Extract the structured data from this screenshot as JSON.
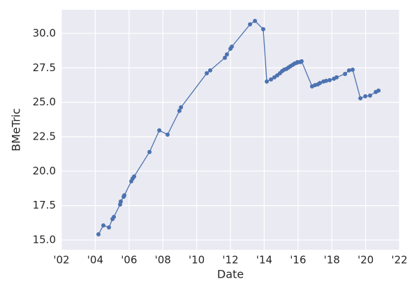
{
  "chart_data": {
    "type": "line",
    "xlabel": "Date",
    "ylabel": "BMeTric",
    "color": "#4c72b0",
    "grid": true,
    "x": [
      2004.19,
      2004.48,
      2004.81,
      2005.02,
      2005.1,
      2005.47,
      2005.51,
      2005.68,
      2005.72,
      2006.13,
      2006.21,
      2006.3,
      2007.21,
      2007.79,
      2008.28,
      2008.98,
      2009.07,
      2010.6,
      2010.8,
      2011.67,
      2011.79,
      2012.0,
      2012.08,
      2013.16,
      2013.45,
      2013.94,
      2014.15,
      2014.4,
      2014.6,
      2014.77,
      2014.93,
      2015.06,
      2015.18,
      2015.31,
      2015.43,
      2015.55,
      2015.68,
      2015.8,
      2015.93,
      2015.97,
      2016.13,
      2016.21,
      2016.83,
      2017.0,
      2017.17,
      2017.29,
      2017.5,
      2017.66,
      2017.87,
      2018.12,
      2018.28,
      2018.78,
      2019.02,
      2019.23,
      2019.69,
      2019.98,
      2020.26,
      2020.6,
      2020.76
    ],
    "values": [
      15.41,
      16.06,
      15.91,
      16.52,
      16.67,
      17.58,
      17.79,
      18.14,
      18.24,
      19.26,
      19.46,
      19.61,
      21.39,
      22.96,
      22.65,
      24.38,
      24.63,
      27.11,
      27.32,
      28.23,
      28.48,
      28.89,
      29.04,
      30.66,
      30.91,
      30.31,
      26.51,
      26.66,
      26.81,
      26.96,
      27.11,
      27.27,
      27.37,
      27.42,
      27.52,
      27.62,
      27.72,
      27.82,
      27.87,
      27.92,
      27.92,
      27.98,
      26.15,
      26.25,
      26.3,
      26.4,
      26.51,
      26.56,
      26.61,
      26.71,
      26.81,
      27.06,
      27.32,
      27.37,
      25.29,
      25.44,
      25.49,
      25.75,
      25.85
    ],
    "xlim": [
      2002,
      2022
    ],
    "xticks": [
      {
        "value": 2002,
        "label": "'02"
      },
      {
        "value": 2004,
        "label": "'04"
      },
      {
        "value": 2006,
        "label": "'06"
      },
      {
        "value": 2008,
        "label": "'08"
      },
      {
        "value": 2010,
        "label": "'10"
      },
      {
        "value": 2012,
        "label": "'12"
      },
      {
        "value": 2014,
        "label": "'14"
      },
      {
        "value": 2016,
        "label": "'16"
      },
      {
        "value": 2018,
        "label": "'18"
      },
      {
        "value": 2020,
        "label": "'20"
      },
      {
        "value": 2022,
        "label": "'22"
      }
    ],
    "ylim": [
      14.29,
      31.72
    ],
    "yticks": [
      {
        "value": 15,
        "label": "15.0"
      },
      17.5,
      {
        "value": 20,
        "label": "20.0"
      },
      22.5,
      {
        "value": 25,
        "label": "25.0"
      },
      27.5,
      {
        "value": 30,
        "label": "30.0"
      }
    ]
  }
}
